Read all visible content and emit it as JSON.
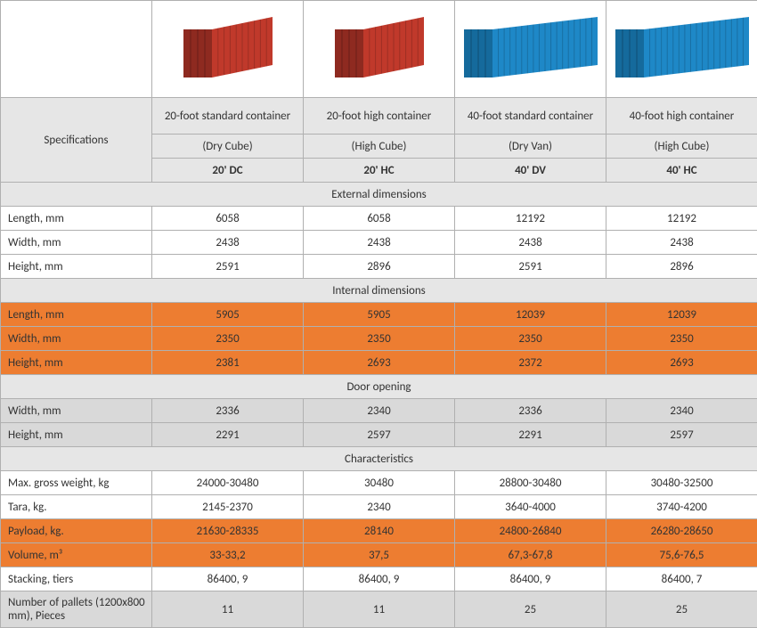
{
  "colors": {
    "border": "#b0b0b0",
    "section_bg": "#e6e6e6",
    "gray_band": "#d9d9d9",
    "orange": "#ed7d31",
    "container_red": "#c0392b",
    "container_red_shadow": "#8e2a20",
    "container_blue": "#1e88c7",
    "container_blue_shadow": "#156a9c"
  },
  "header": {
    "spec_label": "Specifications",
    "containers": [
      {
        "name": "20-foot standard container",
        "type": "(Dry Cube)",
        "code": "20' DC",
        "color": "red",
        "long": false
      },
      {
        "name": "20-foot high container",
        "type": "(High Cube)",
        "code": "20' HC",
        "color": "red",
        "long": false
      },
      {
        "name": "40-foot standard container",
        "type": "(Dry Van)",
        "code": "40' DV",
        "color": "blue",
        "long": true
      },
      {
        "name": "40-foot high container",
        "type": "(High Cube)",
        "code": "40' HC",
        "color": "blue",
        "long": true
      }
    ]
  },
  "sections": [
    {
      "title": "External dimensions",
      "style": "plain",
      "rows": [
        {
          "label": "Length, mm",
          "vals": [
            "6058",
            "6058",
            "12192",
            "12192"
          ]
        },
        {
          "label": "Width, mm",
          "vals": [
            "2438",
            "2438",
            "2438",
            "2438"
          ]
        },
        {
          "label": "Height, mm",
          "vals": [
            "2591",
            "2896",
            "2591",
            "2896"
          ]
        }
      ]
    },
    {
      "title": "Internal dimensions",
      "style": "orange",
      "rows": [
        {
          "label": "Length, mm",
          "vals": [
            "5905",
            "5905",
            "12039",
            "12039"
          ]
        },
        {
          "label": "Width, mm",
          "vals": [
            "2350",
            "2350",
            "2350",
            "2350"
          ]
        },
        {
          "label": "Height, mm",
          "vals": [
            "2381",
            "2693",
            "2372",
            "2693"
          ]
        }
      ]
    },
    {
      "title": "Door opening",
      "style": "gray",
      "rows": [
        {
          "label": "Width, mm",
          "vals": [
            "2336",
            "2340",
            "2336",
            "2340"
          ]
        },
        {
          "label": "Height, mm",
          "vals": [
            "2291",
            "2597",
            "2291",
            "2597"
          ]
        }
      ]
    }
  ],
  "characteristics": {
    "title": "Characteristics",
    "rows": [
      {
        "label": "Max. gross weight, kg",
        "style": "plain",
        "vals": [
          "24000-30480",
          "30480",
          "28800-30480",
          "30480-32500"
        ]
      },
      {
        "label": "Tara, kg.",
        "style": "plain",
        "vals": [
          "2145-2370",
          "2340",
          "3640-4000",
          "3740-4200"
        ]
      },
      {
        "label": "Payload, kg.",
        "style": "orange",
        "vals": [
          "21630-28335",
          "28140",
          "24800-26840",
          "26280-28650"
        ]
      },
      {
        "label": "Volume, m³",
        "style": "orange",
        "vals": [
          "33-33,2",
          "37,5",
          "67,3-67,8",
          "75,6-76,5"
        ]
      },
      {
        "label": "Stacking, tiers",
        "style": "plain",
        "vals": [
          "86400, 9",
          "86400, 9",
          "86400, 9",
          "86400, 7"
        ]
      },
      {
        "label": "Number of pallets (1200x800 mm), Pieces",
        "style": "gray",
        "tall": true,
        "vals": [
          "11",
          "11",
          "25",
          "25"
        ]
      }
    ]
  }
}
